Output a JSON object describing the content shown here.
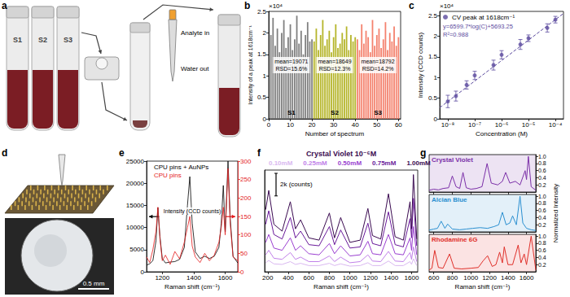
{
  "photos": {
    "a": {
      "panel": "a",
      "tube_labels": [
        "S1",
        "S2",
        "S3"
      ],
      "steps": [
        "Analyte in",
        "Water out"
      ]
    },
    "d": {
      "panel": "d",
      "scale_bar": "0.5 mm"
    }
  },
  "chart_data": [
    {
      "panel": "b",
      "type": "bar",
      "x_label": "Number of spectrum",
      "y_label": "Intensity of a peak at 1618cm⁻¹",
      "y_scale_label": "×10⁴",
      "xlim": [
        0,
        61
      ],
      "xticks": [
        0,
        10,
        20,
        30,
        40,
        50,
        60
      ],
      "ylim": [
        0,
        2.5
      ],
      "yticks": [
        0,
        0.5,
        1,
        1.5,
        2,
        2.5
      ],
      "series": [
        {
          "name": "S1",
          "color": "#808080",
          "annotation": [
            "mean=19071",
            "RSD=15.6%"
          ],
          "x": [
            1,
            2,
            3,
            4,
            5,
            6,
            7,
            8,
            9,
            10,
            11,
            12,
            13,
            14,
            15,
            16,
            17,
            18,
            19,
            20
          ],
          "values": [
            1.95,
            2.35,
            1.7,
            2.1,
            1.55,
            2.0,
            2.3,
            1.65,
            1.9,
            2.2,
            1.6,
            1.85,
            2.4,
            1.75,
            2.05,
            1.5,
            1.95,
            2.25,
            1.8,
            1.85
          ]
        },
        {
          "name": "S2",
          "color": "#b5b52a",
          "annotation": [
            "mean=18649",
            "RSD=12.3%"
          ],
          "x": [
            21,
            22,
            23,
            24,
            25,
            26,
            27,
            28,
            29,
            30,
            31,
            32,
            33,
            34,
            35,
            36,
            37,
            38,
            39,
            40
          ],
          "values": [
            1.8,
            2.1,
            1.6,
            1.95,
            2.3,
            1.7,
            1.85,
            2.05,
            1.55,
            1.9,
            2.2,
            1.65,
            1.75,
            2.0,
            1.85,
            2.15,
            1.6,
            1.95,
            1.8,
            1.9
          ]
        },
        {
          "name": "S3",
          "color": "#f4826e",
          "annotation": [
            "mean=18792",
            "RSD=14.2%"
          ],
          "x": [
            41,
            42,
            43,
            44,
            45,
            46,
            47,
            48,
            49,
            50,
            51,
            52,
            53,
            54,
            55,
            56,
            57,
            58,
            59,
            60
          ],
          "values": [
            1.85,
            1.6,
            2.2,
            1.75,
            2.05,
            1.9,
            1.55,
            2.3,
            1.7,
            1.95,
            2.1,
            1.65,
            1.85,
            2.25,
            1.6,
            2.0,
            1.8,
            2.15,
            1.7,
            1.9
          ]
        }
      ]
    },
    {
      "panel": "c",
      "type": "scatter",
      "log": "x",
      "x_label": "Concentration (M)",
      "y_label": "Intensity (CCD counts)",
      "y_scale_label": "×10⁴",
      "legend": "top-left",
      "annotations": [
        "y=6599.7*log(C)+5693.25",
        "R²=0.988"
      ],
      "xlim": [
        5e-09,
        0.0002
      ],
      "xticks": [
        {
          "value": 1e-08,
          "label": "10⁻⁸"
        },
        {
          "value": 1e-07,
          "label": "10⁻⁷"
        },
        {
          "value": 1e-06,
          "label": "10⁻⁶"
        },
        {
          "value": 1e-05,
          "label": "10⁻⁵"
        },
        {
          "value": 0.0001,
          "label": "10⁻⁴"
        }
      ],
      "ylim": [
        0,
        2.6
      ],
      "yticks": [
        0,
        0.5,
        1,
        1.5,
        2,
        2.5
      ],
      "series": [
        {
          "name": "CV peak at 1618cm⁻¹",
          "color": "#5b4a9e",
          "marker": "circle",
          "x": [
            1e-08,
            2e-08,
            5e-08,
            1e-07,
            5e-07,
            1e-06,
            5e-06,
            1e-05,
            5e-05,
            0.0001
          ],
          "values": [
            0.42,
            0.55,
            0.82,
            1.05,
            1.3,
            1.55,
            1.8,
            1.95,
            2.2,
            2.4
          ],
          "errors": [
            0.15,
            0.12,
            0.1,
            0.1,
            0.12,
            0.1,
            0.12,
            0.08,
            0.1,
            0.08
          ]
        },
        {
          "type": "line",
          "line_style": "dashed",
          "color": "#5b4a9e",
          "x": [
            5e-09,
            0.0002
          ],
          "values": [
            0.27,
            2.55
          ]
        }
      ]
    },
    {
      "panel": "e",
      "type": "line",
      "x_label": "Raman shift (cm⁻¹)",
      "annotations": [
        "Intensity (CCD counts)"
      ],
      "legend": "top-left",
      "xlim": [
        1100,
        1680
      ],
      "xticks": [
        1200,
        1400,
        1600
      ],
      "ylim": [
        0,
        25000
      ],
      "yticks": [
        0,
        5000,
        10000,
        15000,
        20000,
        25000
      ],
      "y2lim": [
        0,
        300
      ],
      "y2ticks": [
        0,
        50,
        100,
        150,
        200,
        250,
        300
      ],
      "x": [
        1100,
        1120,
        1140,
        1160,
        1172,
        1185,
        1200,
        1220,
        1250,
        1280,
        1310,
        1340,
        1360,
        1375,
        1390,
        1410,
        1440,
        1470,
        1500,
        1530,
        1560,
        1575,
        1588,
        1600,
        1618,
        1632,
        1650,
        1680
      ],
      "series": [
        {
          "name": "CPU pins + AuNPs",
          "color": "#000000",
          "values": [
            1500,
            1800,
            2500,
            7000,
            14500,
            8000,
            3000,
            2000,
            2200,
            2300,
            2800,
            5500,
            15000,
            21500,
            11000,
            4500,
            3000,
            3500,
            3000,
            3500,
            5500,
            11000,
            19500,
            9000,
            25000,
            12000,
            3500,
            2000
          ]
        },
        {
          "name": "CPU pins",
          "color": "#e41a1c",
          "axis": "y2",
          "values": [
            40,
            25,
            60,
            110,
            175,
            90,
            30,
            45,
            20,
            55,
            35,
            80,
            120,
            150,
            70,
            40,
            25,
            50,
            30,
            45,
            80,
            120,
            175,
            100,
            280,
            130,
            40,
            30
          ]
        }
      ]
    },
    {
      "panel": "f",
      "type": "line",
      "title": "Crystal Violet 10⁻⁶M",
      "x_label": "Raman shift (cm⁻¹)",
      "legend": "top-center",
      "tick_labels": "x",
      "scale_bar": {
        "value": 2000,
        "label": "2k (counts)"
      },
      "xlim": [
        170,
        1660
      ],
      "xticks": [
        200,
        400,
        600,
        800,
        1000,
        1200,
        1400,
        1600
      ],
      "ylim": [
        0,
        9000
      ],
      "x": [
        180,
        210,
        260,
        340,
        420,
        470,
        520,
        600,
        700,
        800,
        850,
        910,
        1000,
        1100,
        1175,
        1220,
        1300,
        1375,
        1440,
        1520,
        1585,
        1600,
        1618,
        1650
      ],
      "series": [
        {
          "name": "0.10mM",
          "color": "#d9b8f0",
          "values": [
            800,
            1000,
            700,
            650,
            900,
            650,
            750,
            550,
            550,
            750,
            550,
            700,
            500,
            550,
            800,
            550,
            550,
            950,
            550,
            550,
            900,
            650,
            1150,
            550
          ]
        },
        {
          "name": "0.25mM",
          "color": "#c080e8",
          "values": [
            1500,
            1900,
            1200,
            1100,
            1700,
            1100,
            1300,
            900,
            900,
            1400,
            900,
            1300,
            800,
            900,
            1500,
            950,
            900,
            1800,
            950,
            900,
            1700,
            1100,
            2200,
            900
          ]
        },
        {
          "name": "0.50mM",
          "color": "#9a3fd0",
          "values": [
            2600,
            3300,
            2100,
            1900,
            3000,
            1900,
            2300,
            1600,
            1500,
            2500,
            1600,
            2300,
            1400,
            1500,
            2700,
            1600,
            1500,
            3300,
            1600,
            1500,
            3000,
            1900,
            4000,
            1500
          ]
        },
        {
          "name": "0.75mM",
          "color": "#6a1a9a",
          "values": [
            4200,
            5400,
            3300,
            2900,
            4800,
            3000,
            3600,
            2400,
            2300,
            4000,
            2400,
            3700,
            2100,
            2200,
            4300,
            2500,
            2300,
            5300,
            2400,
            2200,
            4700,
            3000,
            6500,
            2300
          ]
        },
        {
          "name": "1.00mM",
          "color": "#3a0a50",
          "values": [
            5500,
            7200,
            4200,
            3600,
            6200,
            3800,
            4600,
            3000,
            2800,
            5200,
            3000,
            4800,
            2600,
            2800,
            5600,
            3200,
            2900,
            6900,
            3100,
            2800,
            6200,
            3800,
            8600,
            2900
          ]
        }
      ]
    },
    {
      "panel": "g",
      "type": "line",
      "x_label": "Raman shift (cm⁻¹)",
      "y_label": "Normalized Intensity",
      "xlim": [
        550,
        1700
      ],
      "xticks": [
        600,
        800,
        1000,
        1200,
        1400,
        1600
      ],
      "ylim": [
        0,
        1.05
      ],
      "yticks": [
        0.2,
        0.4,
        0.6,
        0.8,
        {
          "value": 1,
          "label": "1.0"
        }
      ],
      "series": [
        {
          "name": "Crystal Violet",
          "color": "#7b2fa8",
          "x": [
            550,
            600,
            650,
            700,
            760,
            800,
            840,
            880,
            915,
            950,
            1000,
            1060,
            1120,
            1175,
            1220,
            1290,
            1340,
            1375,
            1420,
            1480,
            1530,
            1585,
            1600,
            1620,
            1650,
            1700
          ],
          "values": [
            0.05,
            0.08,
            0.06,
            0.1,
            0.12,
            0.45,
            0.15,
            0.1,
            0.55,
            0.12,
            0.08,
            0.1,
            0.15,
            0.8,
            0.25,
            0.2,
            0.3,
            0.55,
            0.25,
            0.3,
            0.2,
            0.6,
            0.35,
            1.0,
            0.15,
            0.05
          ]
        },
        {
          "name": "Alcian Blue",
          "color": "#2a8fd0",
          "x": [
            550,
            600,
            640,
            680,
            720,
            750,
            800,
            880,
            950,
            1020,
            1100,
            1180,
            1250,
            1300,
            1340,
            1380,
            1420,
            1450,
            1490,
            1530,
            1560,
            1600,
            1650,
            1700
          ],
          "values": [
            0.05,
            0.08,
            0.1,
            0.3,
            0.1,
            0.22,
            0.08,
            0.06,
            0.08,
            0.1,
            0.12,
            0.1,
            0.15,
            0.2,
            0.55,
            0.2,
            0.25,
            0.45,
            0.2,
            1.0,
            0.25,
            0.1,
            0.06,
            0.04
          ]
        },
        {
          "name": "Rhodamine 6G",
          "color": "#e0302a",
          "x": [
            550,
            580,
            610,
            650,
            700,
            770,
            820,
            900,
            1000,
            1080,
            1130,
            1180,
            1230,
            1270,
            1310,
            1340,
            1360,
            1400,
            1450,
            1510,
            1540,
            1575,
            1600,
            1650,
            1700
          ],
          "values": [
            0.05,
            0.1,
            0.6,
            0.12,
            0.1,
            0.5,
            0.1,
            0.08,
            0.1,
            0.12,
            0.3,
            0.45,
            0.15,
            0.2,
            0.55,
            0.25,
            0.7,
            0.2,
            0.2,
            0.75,
            0.25,
            0.5,
            0.2,
            1.0,
            0.05
          ]
        }
      ]
    }
  ]
}
